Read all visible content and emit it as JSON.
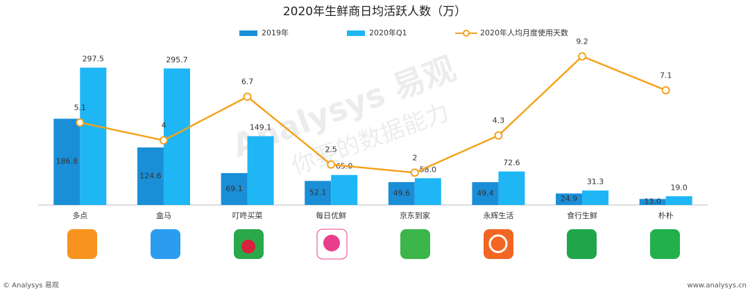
{
  "chart_data": {
    "type": "bar-line",
    "title": "2020年生鲜商日均活跃人数（万）",
    "categories": [
      "多点",
      "盒马",
      "叮咚买菜",
      "每日优鲜",
      "京东到家",
      "永辉生活",
      "食行生鲜",
      "朴朴"
    ],
    "series": [
      {
        "name": "2019年",
        "type": "bar",
        "color": "#1a8fd8",
        "values": [
          186.8,
          124.6,
          69.1,
          52.1,
          49.6,
          49.4,
          24.9,
          13.0
        ],
        "value_labels": [
          "186.8",
          "124.6",
          "69.1",
          "52.1",
          "49.6",
          "49.4",
          "24.9",
          "13.0"
        ]
      },
      {
        "name": "2020年Q1",
        "type": "bar",
        "color": "#1fb6f5",
        "values": [
          297.5,
          295.7,
          149.1,
          65.0,
          58.0,
          72.6,
          31.3,
          19.0
        ],
        "value_labels": [
          "297.5",
          "295.7",
          "149.1",
          "65.0",
          "58.0",
          "72.6",
          "31.3",
          "19.0"
        ]
      },
      {
        "name": "2020年人均月度使用天数",
        "type": "line",
        "axis": "y2",
        "color": "#f4a21b",
        "values": [
          5.1,
          4.0,
          6.7,
          2.5,
          2.0,
          4.3,
          9.2,
          7.1
        ]
      }
    ],
    "ylim": [
      0,
      420
    ],
    "y2lim": [
      0,
      12
    ]
  },
  "watermark": [
    "Analysys 易观",
    "你要的数据能力"
  ],
  "footer": {
    "left": "© Analysys 易观",
    "right": "www.analysys.cn"
  }
}
